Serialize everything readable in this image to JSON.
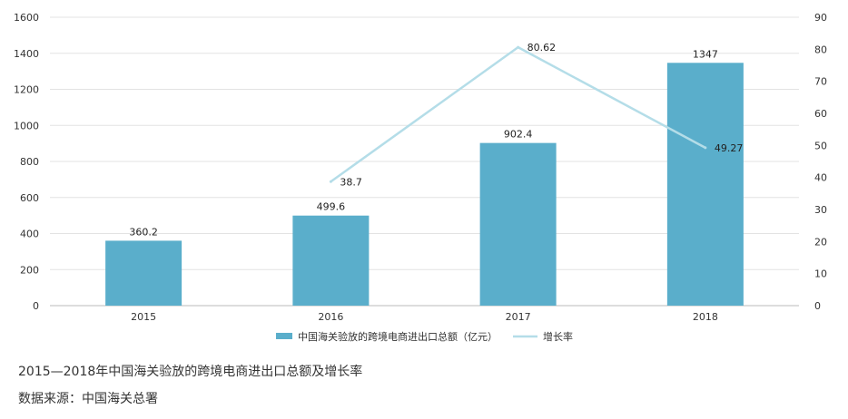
{
  "chart_data": {
    "type": "bar",
    "categories": [
      "2015",
      "2016",
      "2017",
      "2018"
    ],
    "series": [
      {
        "name": "中国海关验放的跨境电商进出口总额（亿元）",
        "type": "bar",
        "axis": "left",
        "values": [
          360.2,
          499.6,
          902.4,
          1347
        ],
        "labels": [
          "360.2",
          "499.6",
          "902.4",
          "1347"
        ]
      },
      {
        "name": "增长率",
        "type": "line",
        "axis": "right",
        "values": [
          null,
          38.7,
          80.62,
          49.27
        ],
        "labels": [
          "",
          "38.7",
          "80.62",
          "49.27"
        ]
      }
    ],
    "y_left": {
      "min": 0,
      "max": 1600,
      "step": 200,
      "ticks": [
        "0",
        "200",
        "400",
        "600",
        "800",
        "1000",
        "1200",
        "1400",
        "1600"
      ]
    },
    "y_right": {
      "min": 0,
      "max": 90,
      "step": 10,
      "ticks": [
        "0",
        "10",
        "20",
        "30",
        "40",
        "50",
        "60",
        "70",
        "80",
        "90"
      ]
    },
    "grid": true,
    "legend_position": "bottom-center",
    "colors": {
      "bar": "#5aaecb",
      "line": "#b4dde8",
      "grid": "#e3e3e3",
      "axis": "#bbbbbb"
    }
  },
  "caption": {
    "title": "2015—2018年中国海关验放的跨境电商进出口总额及增长率",
    "source": "数据来源：中国海关总署"
  }
}
